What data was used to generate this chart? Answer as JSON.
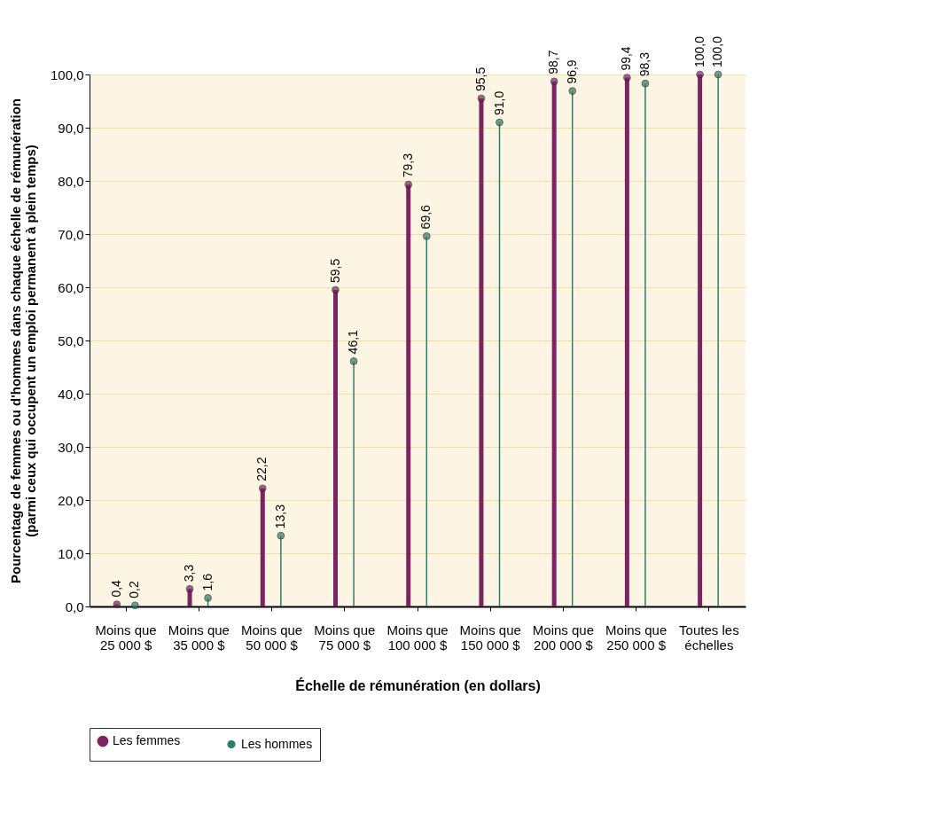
{
  "chart_data": {
    "type": "lollipop",
    "xlabel": "Échelle de rémunération (en dollars)",
    "ylabel": "Pourcentage de femmes ou d'hommes dans chaque échelle de rémunération\n(parmi ceux qui occupent un emploi permanent à plein temps)",
    "categories": [
      "Moins que\n25 000 $",
      "Moins que\n35 000 $",
      "Moins que\n50 000 $",
      "Moins que\n75 000 $",
      "Moins que\n100 000 $",
      "Moins que\n150 000 $",
      "Moins que\n200 000 $",
      "Moins que\n250 000 $",
      "Toutes les\néchelles"
    ],
    "series": [
      {
        "name": "Les femmes",
        "color": "#7b2463",
        "values": [
          0.4,
          3.3,
          22.2,
          59.5,
          79.3,
          95.5,
          98.7,
          99.4,
          100.0
        ],
        "value_labels": [
          "0,4",
          "3,3",
          "22,2",
          "59,5",
          "79,3",
          "95,5",
          "98,7",
          "99,4",
          "100,0"
        ]
      },
      {
        "name": "Les hommes",
        "color": "#2e7d6b",
        "values": [
          0.2,
          1.6,
          13.3,
          46.1,
          69.6,
          91.0,
          96.9,
          98.3,
          100.0
        ],
        "value_labels": [
          "0,2",
          "1,6",
          "13,3",
          "46,1",
          "69,6",
          "91,0",
          "96,9",
          "98,3",
          "100,0"
        ]
      }
    ],
    "ylim": [
      0,
      100
    ],
    "yticks": [
      {
        "value": 0,
        "label": "0,0"
      },
      {
        "value": 10,
        "label": "10,0"
      },
      {
        "value": 20,
        "label": "20,0"
      },
      {
        "value": 30,
        "label": "30,0"
      },
      {
        "value": 40,
        "label": "40,0"
      },
      {
        "value": 50,
        "label": "50,0"
      },
      {
        "value": 60,
        "label": "60,0"
      },
      {
        "value": 70,
        "label": "70,0"
      },
      {
        "value": 80,
        "label": "80,0"
      },
      {
        "value": 90,
        "label": "90,0"
      },
      {
        "value": 100,
        "label": "100,0"
      }
    ],
    "grid": "y",
    "legend": "bottom",
    "marker": "circle"
  }
}
